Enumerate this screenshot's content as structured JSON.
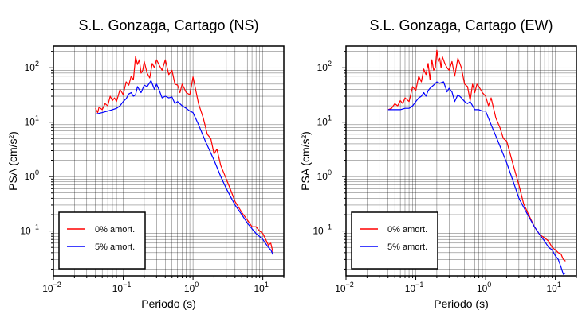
{
  "chart_data": [
    {
      "type": "line",
      "title": "S.L. Gonzaga, Cartago (NS)",
      "xlabel": "Periodo (s)",
      "ylabel": "PSA (cm/s²)",
      "x_scale": "log",
      "y_scale": "log",
      "xlim": [
        0.01,
        20
      ],
      "ylim": [
        0.015,
        250
      ],
      "grid": true,
      "legend_position": "bottom-left",
      "x_ticks": [
        {
          "base": "10",
          "exp": "−2"
        },
        {
          "base": "10",
          "exp": "−1"
        },
        {
          "base": "10",
          "exp": "0"
        },
        {
          "base": "10",
          "exp": "1"
        }
      ],
      "y_ticks": [
        {
          "base": "10",
          "exp": "−1"
        },
        {
          "base": "10",
          "exp": "0"
        },
        {
          "base": "10",
          "exp": "1"
        },
        {
          "base": "10",
          "exp": "2"
        }
      ],
      "series": [
        {
          "name": "0% amort.",
          "color": "#ff0000",
          "x": [
            0.04,
            0.043,
            0.045,
            0.05,
            0.055,
            0.06,
            0.065,
            0.07,
            0.075,
            0.08,
            0.09,
            0.1,
            0.11,
            0.12,
            0.13,
            0.14,
            0.15,
            0.16,
            0.17,
            0.18,
            0.19,
            0.2,
            0.22,
            0.24,
            0.26,
            0.28,
            0.3,
            0.33,
            0.36,
            0.4,
            0.45,
            0.5,
            0.55,
            0.6,
            0.65,
            0.7,
            0.8,
            0.9,
            1.0,
            1.2,
            1.4,
            1.6,
            1.8,
            2.0,
            2.2,
            2.5,
            3.0,
            3.5,
            4.0,
            5.0,
            6.0,
            7.0,
            8.0,
            9.0,
            10.0,
            11.0,
            12.0,
            13.0,
            14.0
          ],
          "y": [
            18,
            15,
            19,
            17,
            22,
            20,
            30,
            25,
            28,
            24,
            40,
            32,
            55,
            48,
            70,
            60,
            160,
            115,
            140,
            80,
            90,
            130,
            80,
            65,
            120,
            100,
            140,
            110,
            90,
            140,
            75,
            90,
            50,
            48,
            35,
            50,
            35,
            32,
            68,
            22,
            12,
            6.0,
            5.0,
            2.6,
            3.2,
            1.6,
            0.9,
            0.55,
            0.35,
            0.22,
            0.16,
            0.12,
            0.12,
            0.1,
            0.09,
            0.07,
            0.055,
            0.06,
            0.04
          ]
        },
        {
          "name": "5% amort.",
          "color": "#0000ff",
          "x": [
            0.04,
            0.05,
            0.06,
            0.07,
            0.08,
            0.09,
            0.1,
            0.11,
            0.12,
            0.13,
            0.14,
            0.15,
            0.16,
            0.18,
            0.2,
            0.22,
            0.25,
            0.28,
            0.3,
            0.33,
            0.36,
            0.4,
            0.45,
            0.5,
            0.55,
            0.6,
            0.7,
            0.8,
            0.9,
            1.0,
            1.2,
            1.5,
            2.0,
            2.5,
            3.0,
            4.0,
            5.0,
            6.0,
            7.0,
            8.0,
            10.0,
            12.0,
            13.0,
            14.0
          ],
          "y": [
            14,
            15,
            16,
            17,
            18,
            20,
            24,
            27,
            33,
            35,
            30,
            32,
            45,
            35,
            48,
            45,
            58,
            40,
            50,
            38,
            28,
            30,
            28,
            29,
            22,
            24,
            20,
            18,
            16,
            15,
            9,
            4.5,
            2.0,
            1.0,
            0.6,
            0.3,
            0.2,
            0.14,
            0.11,
            0.09,
            0.07,
            0.05,
            0.045,
            0.037
          ]
        }
      ]
    },
    {
      "type": "line",
      "title": "S.L. Gonzaga, Cartago (EW)",
      "xlabel": "Periodo (s)",
      "ylabel": "PSA (cm/s²)",
      "x_scale": "log",
      "y_scale": "log",
      "xlim": [
        0.01,
        20
      ],
      "ylim": [
        0.015,
        250
      ],
      "grid": true,
      "legend_position": "bottom-left",
      "x_ticks": [
        {
          "base": "10",
          "exp": "−2"
        },
        {
          "base": "10",
          "exp": "−1"
        },
        {
          "base": "10",
          "exp": "0"
        },
        {
          "base": "10",
          "exp": "1"
        }
      ],
      "y_ticks": [
        {
          "base": "10",
          "exp": "−1"
        },
        {
          "base": "10",
          "exp": "0"
        },
        {
          "base": "10",
          "exp": "1"
        },
        {
          "base": "10",
          "exp": "2"
        }
      ],
      "series": [
        {
          "name": "0% amort.",
          "color": "#ff0000",
          "x": [
            0.04,
            0.045,
            0.05,
            0.055,
            0.06,
            0.065,
            0.07,
            0.08,
            0.09,
            0.1,
            0.11,
            0.12,
            0.13,
            0.14,
            0.15,
            0.16,
            0.17,
            0.18,
            0.19,
            0.2,
            0.21,
            0.22,
            0.23,
            0.24,
            0.26,
            0.28,
            0.3,
            0.33,
            0.36,
            0.4,
            0.45,
            0.5,
            0.55,
            0.6,
            0.65,
            0.7,
            0.75,
            0.8,
            0.9,
            1.0,
            1.1,
            1.2,
            1.4,
            1.6,
            1.8,
            2.0,
            2.5,
            3.0,
            3.5,
            4.0,
            5.0,
            6.0,
            7.0,
            8.0,
            9.0,
            10.0,
            11.0,
            12.0,
            13.0,
            14.0
          ],
          "y": [
            17,
            18,
            22,
            20,
            25,
            22,
            28,
            24,
            45,
            38,
            70,
            55,
            95,
            75,
            120,
            60,
            140,
            90,
            100,
            210,
            130,
            150,
            100,
            160,
            120,
            100,
            90,
            130,
            70,
            150,
            100,
            50,
            45,
            25,
            50,
            35,
            50,
            45,
            35,
            30,
            20,
            28,
            12,
            8,
            5.0,
            4.5,
            1.6,
            0.7,
            0.32,
            0.22,
            0.12,
            0.085,
            0.075,
            0.065,
            0.05,
            0.045,
            0.04,
            0.038,
            0.03,
            0.028
          ]
        },
        {
          "name": "5% amort.",
          "color": "#0000ff",
          "x": [
            0.04,
            0.05,
            0.06,
            0.07,
            0.08,
            0.09,
            0.1,
            0.11,
            0.12,
            0.13,
            0.14,
            0.15,
            0.16,
            0.18,
            0.2,
            0.22,
            0.25,
            0.28,
            0.3,
            0.33,
            0.36,
            0.4,
            0.45,
            0.5,
            0.55,
            0.6,
            0.7,
            0.8,
            0.9,
            1.0,
            1.2,
            1.5,
            2.0,
            2.5,
            3.0,
            4.0,
            5.0,
            6.0,
            7.0,
            8.0,
            9.0,
            10.0,
            11.0,
            12.0,
            13.0,
            14.0
          ],
          "y": [
            17,
            17,
            17,
            18,
            18,
            20,
            24,
            28,
            30,
            35,
            30,
            38,
            42,
            48,
            55,
            52,
            55,
            36,
            42,
            36,
            24,
            32,
            28,
            24,
            22,
            24,
            17,
            17,
            16,
            16,
            9,
            4.5,
            1.8,
            0.8,
            0.4,
            0.2,
            0.12,
            0.085,
            0.065,
            0.05,
            0.045,
            0.035,
            0.03,
            0.022,
            0.016,
            0.017
          ]
        }
      ]
    }
  ]
}
